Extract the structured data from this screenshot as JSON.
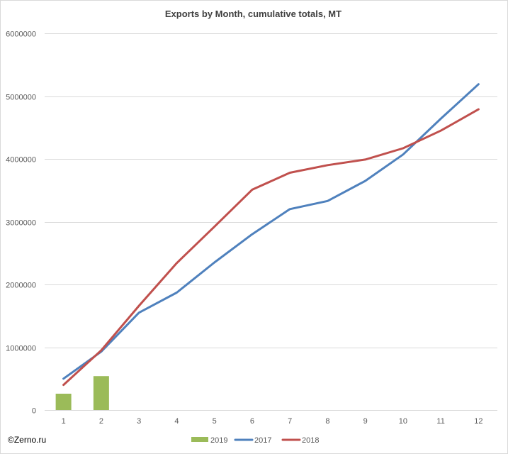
{
  "chart_data": {
    "type": "bar+line",
    "title": "Exports by Month, cumulative totals, MT",
    "categories": [
      "1",
      "2",
      "3",
      "4",
      "5",
      "6",
      "7",
      "8",
      "9",
      "10",
      "11",
      "12"
    ],
    "y_ticks": [
      "0",
      "1000000",
      "2000000",
      "3000000",
      "4000000",
      "5000000",
      "6000000"
    ],
    "ylim": [
      0,
      6000000
    ],
    "grid": "horizontal",
    "legend_position": "bottom",
    "series": [
      {
        "name": "2019",
        "type": "bar",
        "color": "#9bbb59",
        "values": [
          260000,
          540000,
          null,
          null,
          null,
          null,
          null,
          null,
          null,
          null,
          null,
          null
        ]
      },
      {
        "name": "2017",
        "type": "line",
        "color": "#4f81bd",
        "values": [
          500000,
          930000,
          1550000,
          1870000,
          2350000,
          2800000,
          3200000,
          3330000,
          3650000,
          4070000,
          4640000,
          5190000
        ]
      },
      {
        "name": "2018",
        "type": "line",
        "color": "#c0504d",
        "values": [
          400000,
          950000,
          1660000,
          2340000,
          2920000,
          3510000,
          3780000,
          3900000,
          3990000,
          4170000,
          4450000,
          4790000
        ]
      }
    ]
  },
  "watermark": "©Zerno.ru"
}
